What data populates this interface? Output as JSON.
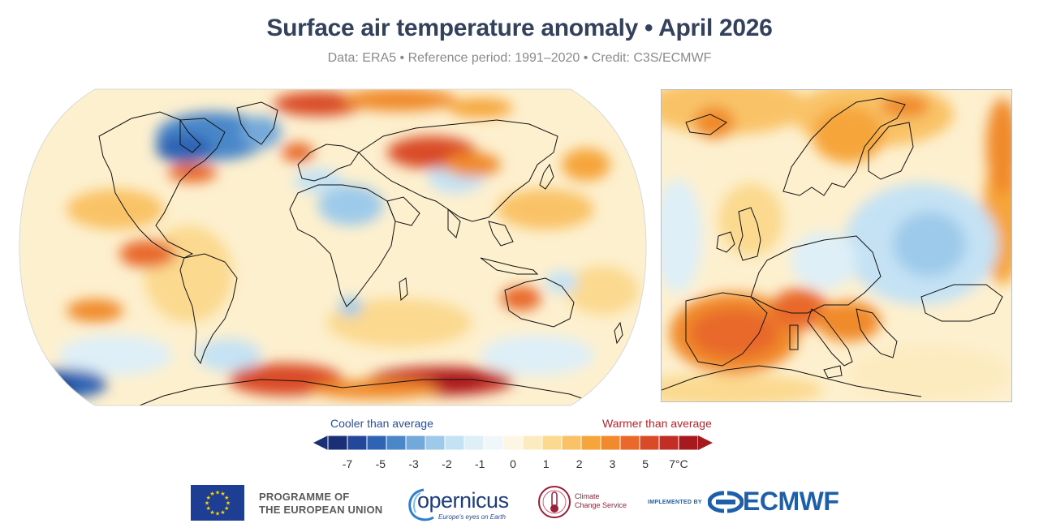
{
  "header": {
    "title": "Surface air temperature anomaly • April 2026",
    "subtitle": "Data: ERA5 • Reference period: 1991–2020 • Credit: C3S/ECMWF"
  },
  "legend": {
    "cooler_label": "Cooler than average",
    "warmer_label": "Warmer than average",
    "tick_labels": [
      "-7",
      "-5",
      "-3",
      "-2",
      "-1",
      "0",
      "1",
      "2",
      "3",
      "5",
      "7°C"
    ],
    "colors": [
      "#1b2f77",
      "#23479a",
      "#2f63b4",
      "#4a87c9",
      "#73a9da",
      "#9dcaea",
      "#c4e2f4",
      "#deeff8",
      "#f0f7fb",
      "#fdf6e3",
      "#fdebc0",
      "#fbd98f",
      "#f9c266",
      "#f6a53b",
      "#f08a2c",
      "#e8692a",
      "#d94b26",
      "#c22e25",
      "#a5191f"
    ],
    "cool_color": "#2a4f9a",
    "warm_color": "#b4262b"
  },
  "footer": {
    "eu_line1": "PROGRAMME OF",
    "eu_line2": "THE EUROPEAN UNION",
    "copernicus": "opernicus",
    "copernicus_tagline": "Europe's eyes on Earth",
    "c3s_line1": "Climate",
    "c3s_line2": "Change Service",
    "implemented_by": "IMPLEMENTED BY",
    "ecmwf": "ECMWF"
  }
}
